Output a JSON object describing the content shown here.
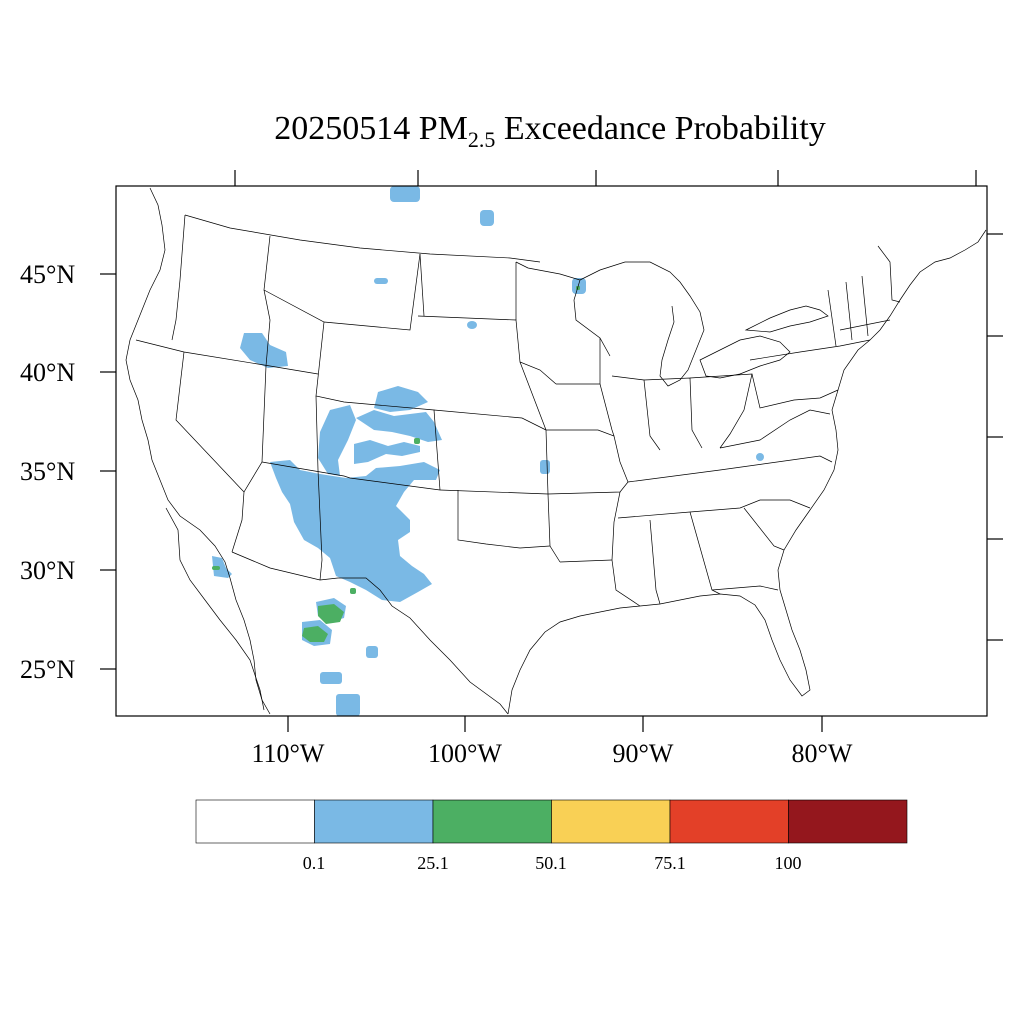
{
  "title": {
    "date": "20250514",
    "pm": "PM",
    "sub": "2.5",
    "rest": "Exceedance Probability"
  },
  "axes": {
    "lat_labels": [
      "45°N",
      "40°N",
      "35°N",
      "30°N",
      "25°N"
    ],
    "lon_labels": [
      "110°W",
      "100°W",
      "90°W",
      "80°W"
    ]
  },
  "legend": {
    "colors": [
      "#ffffff",
      "#7ab9e5",
      "#4caf63",
      "#f9d055",
      "#e34028",
      "#94171d"
    ],
    "labels": [
      "0.1",
      "25.1",
      "50.1",
      "75.1",
      "100"
    ]
  },
  "map": {
    "projection": "Lambert conformal (CONUS)",
    "fill_colors": {
      "low": "#7ab9e5",
      "mid": "#4caf63"
    }
  }
}
